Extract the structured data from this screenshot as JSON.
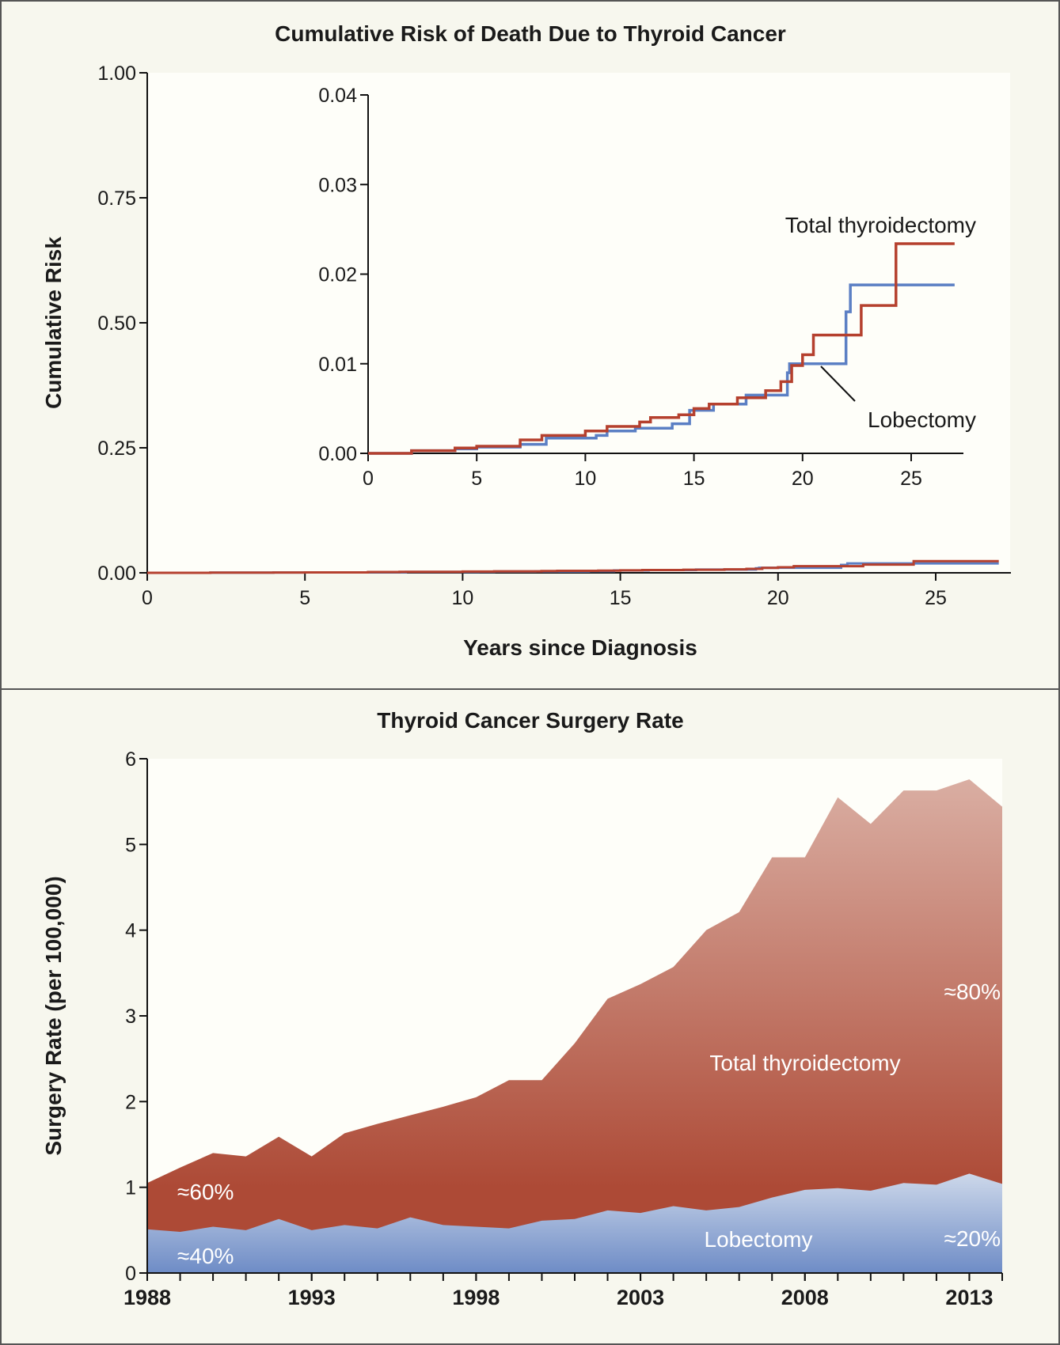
{
  "chart_data": [
    {
      "type": "line",
      "step": true,
      "title": "Cumulative Risk of Death Due to Thyroid Cancer",
      "xlabel": "Years since Diagnosis",
      "ylabel": "Cumulative Risk",
      "xlim": [
        0,
        27
      ],
      "ylim": [
        0,
        1
      ],
      "xticks": [
        "0",
        "5",
        "10",
        "15",
        "20",
        "25"
      ],
      "yticks": [
        "0.00",
        "0.25",
        "0.50",
        "0.75",
        "1.00"
      ],
      "series": [
        {
          "name": "Total thyroidectomy",
          "color": "#b5402e",
          "x": [
            0,
            2,
            4,
            5,
            7,
            8,
            10,
            11,
            12.5,
            13,
            14.3,
            15,
            15.7,
            17,
            18.3,
            19,
            19.5,
            20,
            20.5,
            22.7,
            24.3,
            27
          ],
          "y": [
            0,
            0.0003,
            0.0006,
            0.0008,
            0.0015,
            0.002,
            0.0025,
            0.003,
            0.0035,
            0.004,
            0.0043,
            0.005,
            0.0055,
            0.0062,
            0.007,
            0.008,
            0.0098,
            0.011,
            0.0132,
            0.0165,
            0.0234,
            0.0234
          ]
        },
        {
          "name": "Lobectomy",
          "color": "#5b7fc4",
          "x": [
            0,
            2,
            4,
            5,
            7,
            8.2,
            10.5,
            11,
            12.3,
            14,
            14.8,
            15.9,
            17.4,
            19.3,
            19.4,
            22,
            22.2,
            27
          ],
          "y": [
            0,
            0.0003,
            0.0005,
            0.0007,
            0.001,
            0.0017,
            0.002,
            0.0025,
            0.0028,
            0.0033,
            0.0048,
            0.0055,
            0.0065,
            0.009,
            0.01,
            0.0158,
            0.0188,
            0.0188
          ]
        }
      ],
      "inset": {
        "xlim": [
          0,
          27
        ],
        "ylim": [
          0,
          0.04
        ],
        "xticks": [
          "0",
          "5",
          "10",
          "15",
          "20",
          "25"
        ],
        "yticks": [
          "0.00",
          "0.01",
          "0.02",
          "0.03",
          "0.04"
        ],
        "labels": {
          "total": "Total thyroidectomy",
          "lobectomy": "Lobectomy"
        }
      }
    },
    {
      "type": "area",
      "stacked": true,
      "title": "Thyroid Cancer Surgery Rate",
      "xlabel": "",
      "ylabel": "Surgery Rate (per 100,000)",
      "xlim": [
        1988,
        2014
      ],
      "ylim": [
        0,
        6
      ],
      "xticks": [
        "1988",
        "1993",
        "1998",
        "2003",
        "2008",
        "2013"
      ],
      "yticks": [
        "0",
        "1",
        "2",
        "3",
        "4",
        "5",
        "6"
      ],
      "x": [
        1988,
        1989,
        1990,
        1991,
        1992,
        1993,
        1994,
        1995,
        1996,
        1997,
        1998,
        1999,
        2000,
        2001,
        2002,
        2003,
        2004,
        2005,
        2006,
        2007,
        2008,
        2009,
        2010,
        2011,
        2012,
        2013,
        2014
      ],
      "total": [
        1.05,
        1.23,
        1.4,
        1.36,
        1.59,
        1.36,
        1.63,
        1.74,
        1.84,
        1.94,
        2.05,
        2.25,
        2.25,
        2.68,
        3.2,
        3.37,
        3.57,
        4.0,
        4.21,
        4.85,
        4.85,
        5.55,
        5.24,
        5.63,
        5.63,
        5.76,
        5.44
      ],
      "series": [
        {
          "name": "Lobectomy",
          "color": "#7b93c8",
          "values": [
            0.51,
            0.48,
            0.54,
            0.5,
            0.63,
            0.5,
            0.56,
            0.52,
            0.65,
            0.56,
            0.54,
            0.52,
            0.61,
            0.63,
            0.73,
            0.7,
            0.78,
            0.73,
            0.77,
            0.88,
            0.97,
            0.99,
            0.96,
            1.05,
            1.03,
            1.16,
            1.04
          ]
        },
        {
          "name": "Total thyroidectomy",
          "color": "#b0503e",
          "values": [
            0.54,
            0.75,
            0.86,
            0.86,
            0.96,
            0.86,
            1.07,
            1.22,
            1.19,
            1.38,
            1.51,
            1.73,
            1.64,
            2.05,
            2.47,
            2.67,
            2.79,
            3.27,
            3.44,
            3.97,
            3.88,
            4.56,
            4.28,
            4.58,
            4.6,
            4.6,
            4.4
          ]
        }
      ],
      "annotations": {
        "tt_early": "≈60%",
        "lob_early": "≈40%",
        "tt_late": "≈80%",
        "lob_late": "≈20%",
        "tt_label": "Total thyroidectomy",
        "lob_label": "Lobectomy"
      }
    }
  ]
}
